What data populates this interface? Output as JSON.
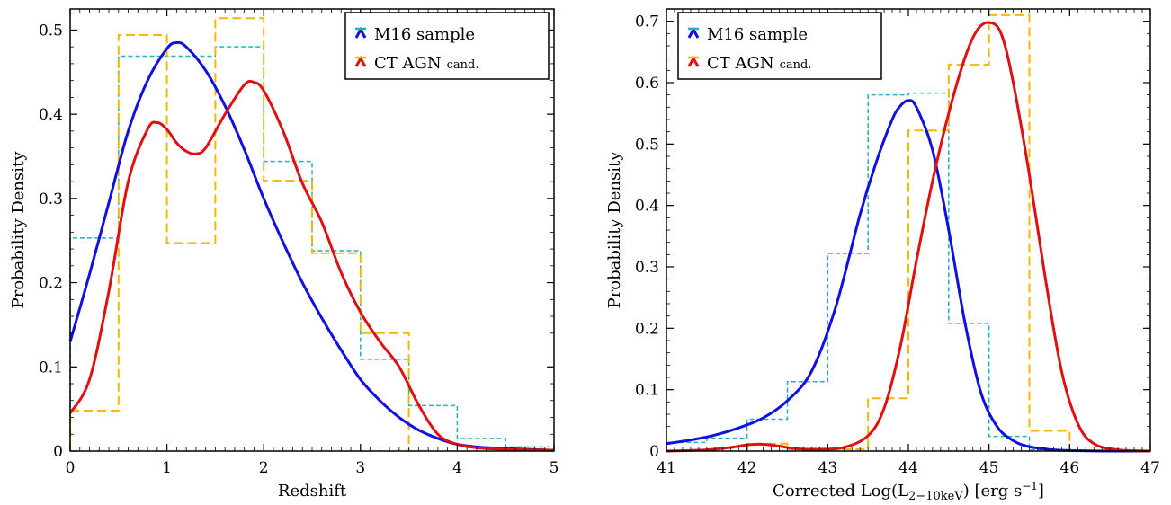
{
  "chart_data": [
    {
      "type": "line",
      "xlabel": "Redshift",
      "ylabel": "Probability Density",
      "xlim": [
        0,
        5
      ],
      "ylim": [
        0,
        0.525
      ],
      "xticks": [
        "0",
        "1",
        "2",
        "3",
        "4",
        "5"
      ],
      "yticks": [
        "0",
        "0.1",
        "0.2",
        "0.3",
        "0.4",
        "0.5"
      ],
      "legend": {
        "position": "top-right",
        "entries": [
          {
            "label": "M16 sample",
            "color": "#1010e0"
          },
          {
            "label": "CT AGN",
            "label_suffix": "cand.",
            "color": "#e01010"
          }
        ]
      },
      "histograms": [
        {
          "series": "M16 sample",
          "color": "#20b0c0",
          "style": "dashed",
          "bin_edges": [
            0,
            0.5,
            1.0,
            1.5,
            2.0,
            2.5,
            3.0,
            3.5,
            4.0,
            4.5,
            5.0
          ],
          "values": [
            0.253,
            0.469,
            0.469,
            0.48,
            0.344,
            0.238,
            0.109,
            0.054,
            0.015,
            0.005
          ]
        },
        {
          "series": "CT AGN cand.",
          "color": "#f5b800",
          "style": "dashed",
          "bin_edges": [
            0,
            0.5,
            1.0,
            1.5,
            2.0,
            2.5,
            3.0,
            3.5
          ],
          "values": [
            0.048,
            0.494,
            0.247,
            0.514,
            0.321,
            0.235,
            0.14
          ]
        }
      ],
      "series": [
        {
          "name": "M16 sample",
          "color": "#1010e0",
          "x": [
            0,
            0.2,
            0.4,
            0.6,
            0.8,
            1.0,
            1.1,
            1.2,
            1.4,
            1.6,
            1.8,
            2.0,
            2.2,
            2.4,
            2.6,
            2.8,
            3.0,
            3.2,
            3.4,
            3.6,
            3.8,
            4.0,
            4.2,
            4.5,
            5.0
          ],
          "y": [
            0.13,
            0.21,
            0.295,
            0.38,
            0.44,
            0.478,
            0.485,
            0.48,
            0.452,
            0.41,
            0.358,
            0.3,
            0.248,
            0.2,
            0.158,
            0.12,
            0.085,
            0.06,
            0.04,
            0.025,
            0.015,
            0.008,
            0.005,
            0.003,
            0.001
          ]
        },
        {
          "name": "CT AGN cand.",
          "color": "#e01010",
          "x": [
            0,
            0.2,
            0.4,
            0.6,
            0.8,
            0.9,
            1.0,
            1.1,
            1.2,
            1.3,
            1.4,
            1.6,
            1.8,
            1.9,
            2.0,
            2.2,
            2.4,
            2.6,
            2.8,
            3.0,
            3.2,
            3.4,
            3.6,
            3.8,
            4.0,
            4.2,
            4.5,
            5.0
          ],
          "y": [
            0.045,
            0.085,
            0.19,
            0.32,
            0.382,
            0.39,
            0.382,
            0.366,
            0.356,
            0.353,
            0.36,
            0.4,
            0.435,
            0.438,
            0.428,
            0.38,
            0.318,
            0.272,
            0.212,
            0.165,
            0.13,
            0.1,
            0.055,
            0.02,
            0.008,
            0.004,
            0.002,
            0.001
          ]
        }
      ]
    },
    {
      "type": "line",
      "xlabel": "Corrected Log(L",
      "xlabel_sub": "2−10keV",
      "xlabel_tail": ") [erg s",
      "xlabel_sup": "−1",
      "xlabel_end": "]",
      "ylabel": "Probability Density",
      "xlim": [
        41,
        47
      ],
      "ylim": [
        0,
        0.72
      ],
      "xticks": [
        "41",
        "42",
        "43",
        "44",
        "45",
        "46",
        "47"
      ],
      "yticks": [
        "0",
        "0.1",
        "0.2",
        "0.3",
        "0.4",
        "0.5",
        "0.6",
        "0.7"
      ],
      "legend": {
        "position": "top-left",
        "entries": [
          {
            "label": "M16 sample",
            "color": "#1010e0"
          },
          {
            "label": "CT AGN",
            "label_suffix": "cand.",
            "color": "#e01010"
          }
        ]
      },
      "histograms": [
        {
          "series": "M16 sample",
          "color": "#20b0c0",
          "style": "dashed",
          "bin_edges": [
            41.0,
            41.5,
            42.0,
            42.5,
            43.0,
            43.5,
            44.0,
            44.5,
            45.0,
            45.5,
            46.0
          ],
          "values": [
            0.014,
            0.021,
            0.052,
            0.113,
            0.322,
            0.58,
            0.583,
            0.208,
            0.024,
            0.002
          ]
        },
        {
          "series": "CT AGN cand.",
          "color": "#f5b800",
          "style": "dashed",
          "bin_edges": [
            42.0,
            42.5,
            43.0,
            43.5,
            44.0,
            44.5,
            45.0,
            45.5,
            46.0
          ],
          "values": [
            0.012,
            0.003,
            0.003,
            0.086,
            0.522,
            0.629,
            0.71,
            0.033
          ]
        }
      ],
      "series": [
        {
          "name": "M16 sample",
          "color": "#1010e0",
          "x": [
            41.0,
            41.3,
            41.6,
            41.9,
            42.2,
            42.5,
            42.8,
            43.1,
            43.4,
            43.6,
            43.8,
            43.9,
            44.0,
            44.1,
            44.3,
            44.5,
            44.7,
            44.9,
            45.1,
            45.3,
            45.5,
            45.8,
            46.0,
            46.5,
            47.0
          ],
          "y": [
            0.012,
            0.018,
            0.026,
            0.038,
            0.054,
            0.082,
            0.13,
            0.235,
            0.385,
            0.47,
            0.54,
            0.562,
            0.571,
            0.56,
            0.49,
            0.36,
            0.21,
            0.095,
            0.04,
            0.017,
            0.007,
            0.002,
            0.001,
            0.0,
            0.0
          ]
        },
        {
          "name": "CT AGN cand.",
          "color": "#e01010",
          "x": [
            41.0,
            41.5,
            41.8,
            42.0,
            42.2,
            42.4,
            42.6,
            42.9,
            43.2,
            43.5,
            43.7,
            43.9,
            44.1,
            44.3,
            44.5,
            44.7,
            44.85,
            45.0,
            45.15,
            45.3,
            45.5,
            45.7,
            45.9,
            46.1,
            46.3,
            46.6,
            47.0
          ],
          "y": [
            0.0,
            0.002,
            0.006,
            0.01,
            0.011,
            0.008,
            0.004,
            0.003,
            0.006,
            0.025,
            0.07,
            0.17,
            0.31,
            0.44,
            0.55,
            0.64,
            0.685,
            0.698,
            0.68,
            0.6,
            0.45,
            0.28,
            0.13,
            0.045,
            0.012,
            0.002,
            0.0
          ]
        }
      ]
    }
  ]
}
